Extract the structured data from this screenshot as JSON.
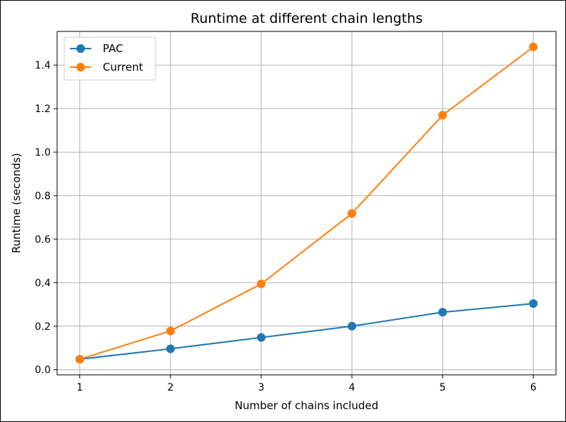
{
  "chart_data": {
    "type": "line",
    "title": "Runtime at different chain lengths",
    "xlabel": "Number of chains included",
    "ylabel": "Runtime (seconds)",
    "x": [
      1,
      2,
      3,
      4,
      5,
      6
    ],
    "xticks": [
      "1",
      "2",
      "3",
      "4",
      "5",
      "6"
    ],
    "yticks": [
      "0.0",
      "0.2",
      "0.4",
      "0.6",
      "0.8",
      "1.0",
      "1.2",
      "1.4"
    ],
    "ytick_values": [
      0.0,
      0.2,
      0.4,
      0.6,
      0.8,
      1.0,
      1.2,
      1.4
    ],
    "xlim": [
      0.75,
      6.25
    ],
    "ylim": [
      -0.024,
      1.555
    ],
    "grid": true,
    "legend_position": "upper left",
    "series": [
      {
        "name": "PAC",
        "color": "#1f77b4",
        "values": [
          0.048,
          0.096,
          0.148,
          0.2,
          0.264,
          0.304
        ]
      },
      {
        "name": "Current",
        "color": "#ff7f0e",
        "values": [
          0.048,
          0.178,
          0.394,
          0.718,
          1.17,
          1.484
        ]
      }
    ]
  }
}
